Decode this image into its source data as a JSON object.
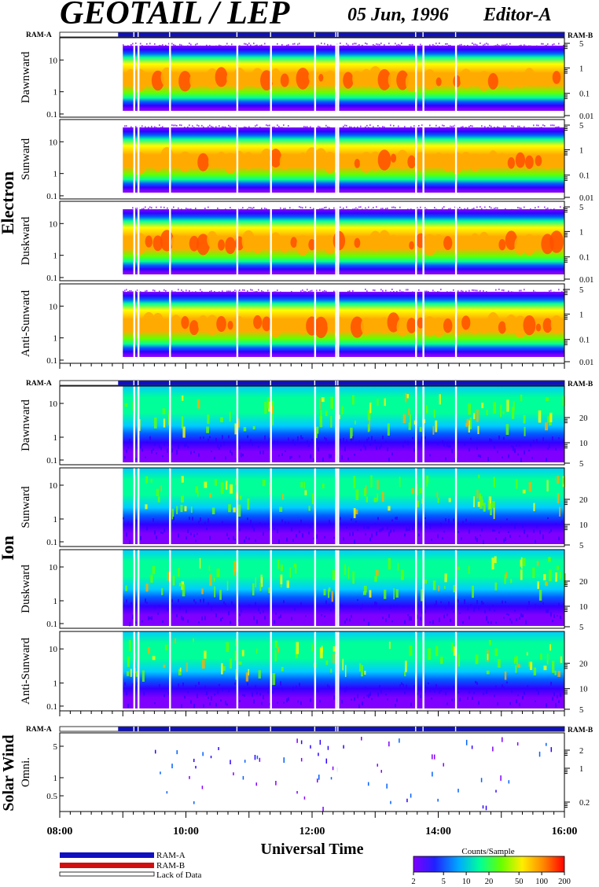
{
  "header": {
    "title": "GEOTAIL / LEP",
    "date": "05 Jun, 1996",
    "editor": "Editor-A"
  },
  "species": {
    "electron": "Electron",
    "ion": "Ion",
    "solar_wind": "Solar Wind"
  },
  "ram_labels": {
    "a": "RAM-A",
    "b": "RAM-B"
  },
  "xaxis": {
    "title": "Universal Time",
    "ticks": [
      "08:00",
      "10:00",
      "12:00",
      "14:00",
      "16:00"
    ]
  },
  "legend": {
    "ram_a": "RAM-A",
    "ram_b": "RAM-B",
    "lack": "Lack of Data",
    "colorbar_title": "Counts/Sample",
    "colorbar_ticks": [
      "2",
      "5",
      "10",
      "20",
      "50",
      "100",
      "200"
    ]
  },
  "colors": {
    "ram_a": "#1010c0",
    "ram_b": "#d01010",
    "spectrum": [
      "#8000ff",
      "#3000ff",
      "#0060ff",
      "#00ccff",
      "#00ff99",
      "#66ff00",
      "#ffff00",
      "#ffaa00",
      "#ff5000",
      "#ff0000"
    ]
  },
  "chart_data": {
    "type": "heatmap",
    "x_range": [
      "08:00",
      "16:00"
    ],
    "data_start": "09:00",
    "gaps": [
      "09:10",
      "09:14",
      "09:44",
      "10:48",
      "11:20",
      "12:02",
      "12:22",
      "12:24",
      "13:38",
      "13:45",
      "14:16"
    ],
    "panels": [
      {
        "group": "electron",
        "label": "Dawnward",
        "left_ticks": [
          "10",
          "1",
          "0.1"
        ],
        "right_ticks": [
          "5",
          "1",
          "0.1",
          "0.01"
        ]
      },
      {
        "group": "electron",
        "label": "Sunward",
        "left_ticks": [
          "10",
          "1",
          "0.1"
        ],
        "right_ticks": [
          "5",
          "1",
          "0.1",
          "0.01"
        ]
      },
      {
        "group": "electron",
        "label": "Duskward",
        "left_ticks": [
          "10",
          "1",
          "0.1"
        ],
        "right_ticks": [
          "5",
          "1",
          "0.1",
          "0.01"
        ]
      },
      {
        "group": "electron",
        "label": "Anti-Sunward",
        "left_ticks": [
          "10",
          "1",
          "0.1"
        ],
        "right_ticks": [
          "5",
          "1",
          "0.1",
          "0.01"
        ]
      },
      {
        "group": "ion",
        "label": "Dawnward",
        "left_ticks": [
          "10",
          "1",
          "0.1"
        ],
        "right_ticks": [
          "20",
          "10",
          "5"
        ]
      },
      {
        "group": "ion",
        "label": "Sunward",
        "left_ticks": [
          "10",
          "1",
          "0.1"
        ],
        "right_ticks": [
          "20",
          "10",
          "5"
        ]
      },
      {
        "group": "ion",
        "label": "Duskward",
        "left_ticks": [
          "10",
          "1",
          "0.1"
        ],
        "right_ticks": [
          "20",
          "10",
          "5"
        ]
      },
      {
        "group": "ion",
        "label": "Anti-Sunward",
        "left_ticks": [
          "10",
          "1",
          "0.1"
        ],
        "right_ticks": [
          "20",
          "10",
          "5"
        ]
      },
      {
        "group": "solar_wind",
        "label": "Omni.",
        "left_ticks": [
          "5",
          "1",
          "0.5"
        ],
        "right_ticks": [
          "2",
          "1",
          "0.2"
        ]
      }
    ]
  }
}
